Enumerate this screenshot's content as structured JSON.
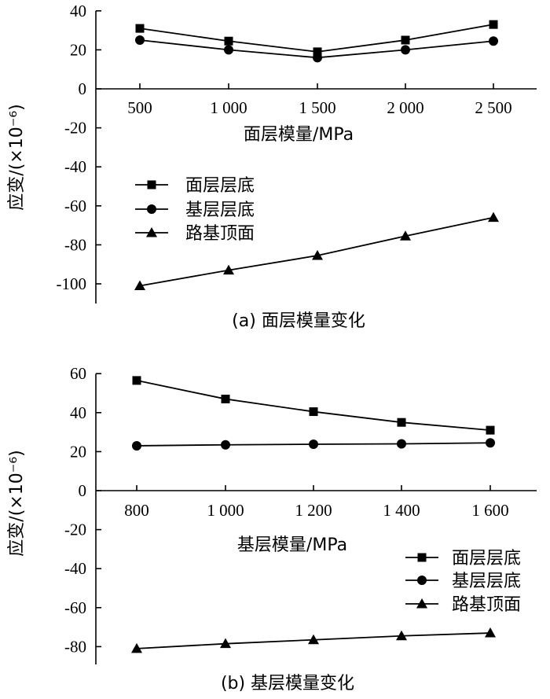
{
  "chart_data": [
    {
      "type": "line",
      "caption": "(a) 面层模量变化",
      "xlabel": "面层模量/MPa",
      "ylabel": "应变/(×10⁻⁶)",
      "categories": [
        "500",
        "1 000",
        "1 500",
        "2 000",
        "2 500"
      ],
      "x": [
        500,
        1000,
        1500,
        2000,
        2500
      ],
      "ylim": [
        -110,
        40
      ],
      "yticks": [
        40,
        20,
        0,
        -20,
        -40,
        -60,
        -80,
        -100
      ],
      "ytick_labels": [
        "40",
        "20",
        "0",
        "-20",
        "-40",
        "-60",
        "-80",
        "-100"
      ],
      "legend_position": "middle-left",
      "series": [
        {
          "name": "面层层底",
          "marker": "square",
          "values": [
            31,
            24.5,
            19,
            25,
            33
          ]
        },
        {
          "name": "基层层底",
          "marker": "circle",
          "values": [
            25,
            20,
            16,
            20,
            24.5
          ]
        },
        {
          "name": "路基顶面",
          "marker": "triangle",
          "values": [
            -101,
            -93,
            -85.5,
            -75.5,
            -66
          ]
        }
      ]
    },
    {
      "type": "line",
      "caption": "(b) 基层模量变化",
      "xlabel": "基层模量/MPa",
      "ylabel": "应变/(×10⁻⁶)",
      "categories": [
        "800",
        "1 000",
        "1 200",
        "1 400",
        "1 600"
      ],
      "x": [
        800,
        1000,
        1200,
        1400,
        1600
      ],
      "ylim": [
        -90,
        60
      ],
      "yticks": [
        60,
        40,
        20,
        0,
        -20,
        -40,
        -60,
        -80
      ],
      "ytick_labels": [
        "60",
        "40",
        "20",
        "0",
        "-20",
        "-40",
        "-60",
        "-80"
      ],
      "legend_position": "middle-right",
      "series": [
        {
          "name": "面层层底",
          "marker": "square",
          "values": [
            56.5,
            47,
            40.5,
            35,
            31
          ]
        },
        {
          "name": "基层层底",
          "marker": "circle",
          "values": [
            23,
            23.5,
            23.8,
            24,
            24.5
          ]
        },
        {
          "name": "路基顶面",
          "marker": "triangle",
          "values": [
            -81,
            -78.5,
            -76.5,
            -74.5,
            -73
          ]
        }
      ]
    }
  ]
}
